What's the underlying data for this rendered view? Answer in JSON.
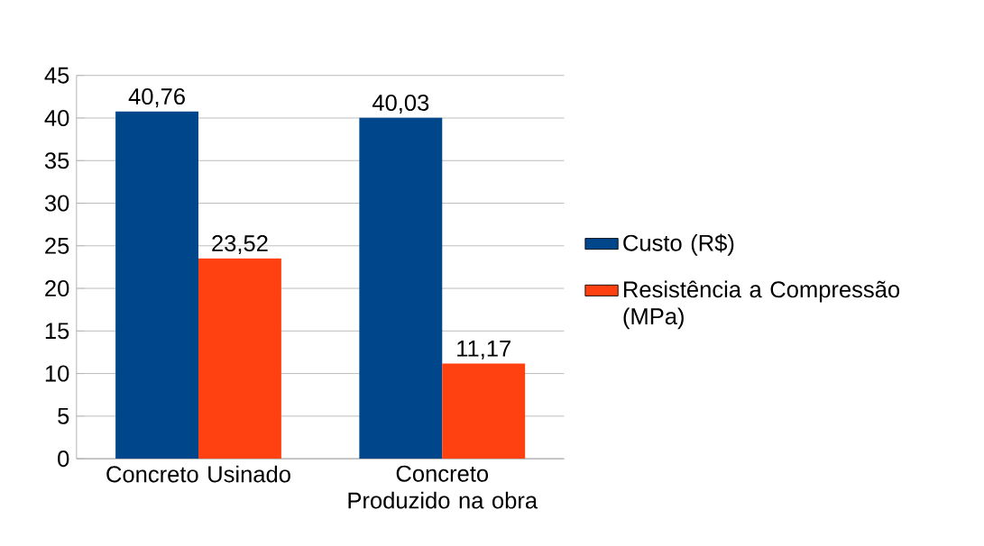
{
  "chart_data": {
    "type": "bar",
    "categories": [
      "Concreto Usinado",
      "Concreto Produzido na obra"
    ],
    "series": [
      {
        "name": "Custo (R$)",
        "color": "#00468b",
        "values": [
          40.76,
          40.03
        ],
        "value_labels": [
          "40,76",
          "40,03"
        ]
      },
      {
        "name": "Resistência a Compressão (MPa)",
        "color": "#ff4010",
        "values": [
          23.52,
          11.17
        ],
        "value_labels": [
          "23,52",
          "11,17"
        ]
      }
    ],
    "ylim": [
      0,
      45
    ],
    "yticks": [
      0,
      5,
      10,
      15,
      20,
      25,
      30,
      35,
      40,
      45
    ],
    "grid": "y",
    "legend": "right"
  }
}
